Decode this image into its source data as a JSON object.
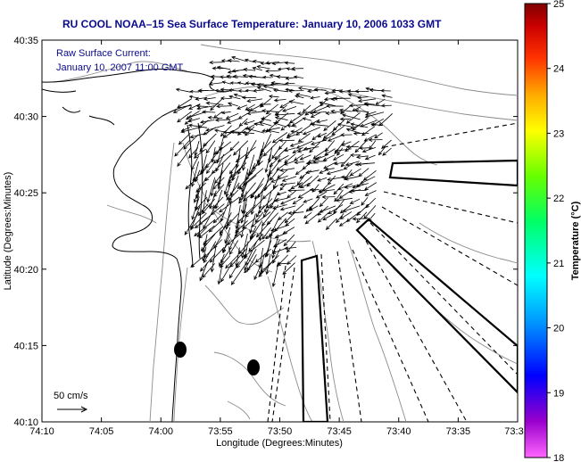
{
  "title": "RU COOL  NOAA–15  Sea Surface Temperature:  January 10, 2006 1033 GMT",
  "annotation": {
    "line1": "Raw Surface Current:",
    "line2": "January 10, 2007 11:00 GMT"
  },
  "scale": {
    "label": "50 cm/s",
    "speed_cm_s": 50
  },
  "axes": {
    "xlabel": "Longitude (Degrees:Minutes)",
    "ylabel": "Latitude (Degrees:Minutes)",
    "xticks": [
      "74:10",
      "74:05",
      "74:00",
      "73:55",
      "73:50",
      "73:45",
      "73:40",
      "73:35",
      "73:3"
    ],
    "yticks": [
      "40:35",
      "40:30",
      "40:25",
      "40:20",
      "40:15",
      "40:10"
    ],
    "xlim_minutes_west": [
      10,
      -30
    ],
    "ylim_minutes_north": [
      10,
      35
    ]
  },
  "colorbar": {
    "label": "Temperature (°C)",
    "ticks": [
      "25",
      "24",
      "23",
      "22",
      "21",
      "20",
      "19",
      "18"
    ],
    "range": [
      18,
      25
    ],
    "colors": [
      "#ff66ff",
      "#9900cc",
      "#0000ff",
      "#0099ff",
      "#00ffff",
      "#00ff66",
      "#66ff00",
      "#ffff00",
      "#ffaa00",
      "#ff3300",
      "#cc0000",
      "#800000"
    ]
  },
  "colors": {
    "title": "#0a0a8c",
    "vectors": "#000000",
    "coast": "#000000",
    "bathymetry": "#8c8c8c"
  }
}
